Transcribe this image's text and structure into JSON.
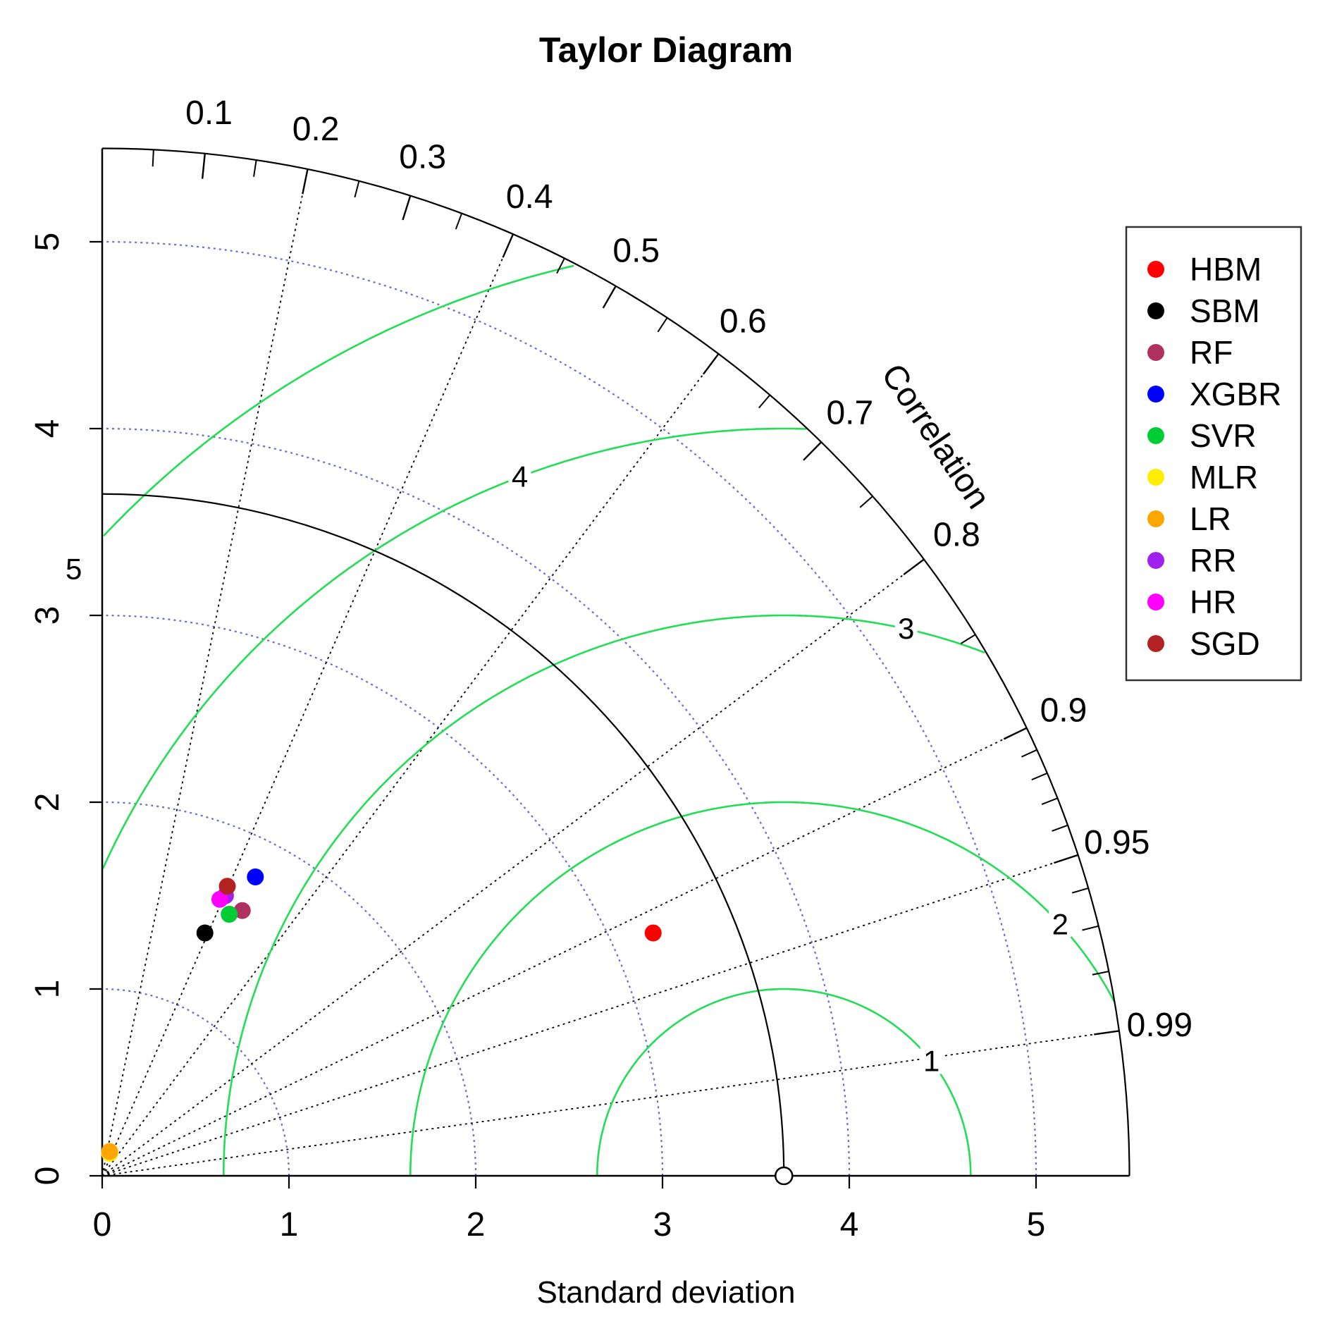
{
  "chart_data": {
    "type": "scatter",
    "subtype": "taylor-diagram",
    "title": "Taylor Diagram",
    "xlabel": "Standard deviation",
    "ylabel": "",
    "arc_label": "Correlation",
    "sd_range": [
      0,
      5.5
    ],
    "sd_ticks": [
      "0",
      "1",
      "2",
      "3",
      "4",
      "5"
    ],
    "sd_tick_values": [
      0,
      1,
      2,
      3,
      4,
      5
    ],
    "reference_sd": 3.65,
    "correlation_labels": [
      {
        "value": 0.1,
        "text": "0.1"
      },
      {
        "value": 0.2,
        "text": "0.2"
      },
      {
        "value": 0.3,
        "text": "0.3"
      },
      {
        "value": 0.4,
        "text": "0.4"
      },
      {
        "value": 0.5,
        "text": "0.5"
      },
      {
        "value": 0.6,
        "text": "0.6"
      },
      {
        "value": 0.7,
        "text": "0.7"
      },
      {
        "value": 0.8,
        "text": "0.8"
      },
      {
        "value": 0.9,
        "text": "0.9"
      },
      {
        "value": 0.95,
        "text": "0.95"
      },
      {
        "value": 0.99,
        "text": "0.99"
      }
    ],
    "correlation_lines": [
      0.2,
      0.4,
      0.6,
      0.8,
      0.9,
      0.95,
      0.99
    ],
    "rms_contours": [
      {
        "value": 1,
        "text": "1"
      },
      {
        "value": 2,
        "text": "2"
      },
      {
        "value": 3,
        "text": "3"
      },
      {
        "value": 4,
        "text": "4"
      },
      {
        "value": 5,
        "text": "5"
      }
    ],
    "grid": true,
    "legend_position": "top-right",
    "colors": {
      "sd_grid": "#6b6bd6",
      "rms_contour": "#22dd55",
      "correlation_lines": "#000000",
      "reference_arc": "#000000"
    },
    "series": [
      {
        "name": "HBM",
        "color": "#ff0000",
        "sd": 3.23,
        "x": 2.95,
        "y": 1.3
      },
      {
        "name": "SBM",
        "color": "#000000",
        "sd": 1.41,
        "x": 0.55,
        "y": 1.3
      },
      {
        "name": "RF",
        "color": "#b03060",
        "sd": 1.6,
        "x": 0.75,
        "y": 1.42
      },
      {
        "name": "XGBR",
        "color": "#0000ff",
        "sd": 1.8,
        "x": 0.82,
        "y": 1.6
      },
      {
        "name": "SVR",
        "color": "#00cc33",
        "sd": 1.56,
        "x": 0.68,
        "y": 1.4
      },
      {
        "name": "MLR",
        "color": "#ffee00",
        "sd": 0.13,
        "x": 0.04,
        "y": 0.12
      },
      {
        "name": "LR",
        "color": "#ffa500",
        "sd": 0.13,
        "x": 0.04,
        "y": 0.13
      },
      {
        "name": "RR",
        "color": "#a020f0",
        "sd": 1.64,
        "x": 0.66,
        "y": 1.5
      },
      {
        "name": "HR",
        "color": "#ff00ff",
        "sd": 1.61,
        "x": 0.63,
        "y": 1.48
      },
      {
        "name": "SGD",
        "color": "#b22222",
        "sd": 1.69,
        "x": 0.67,
        "y": 1.55
      }
    ]
  }
}
